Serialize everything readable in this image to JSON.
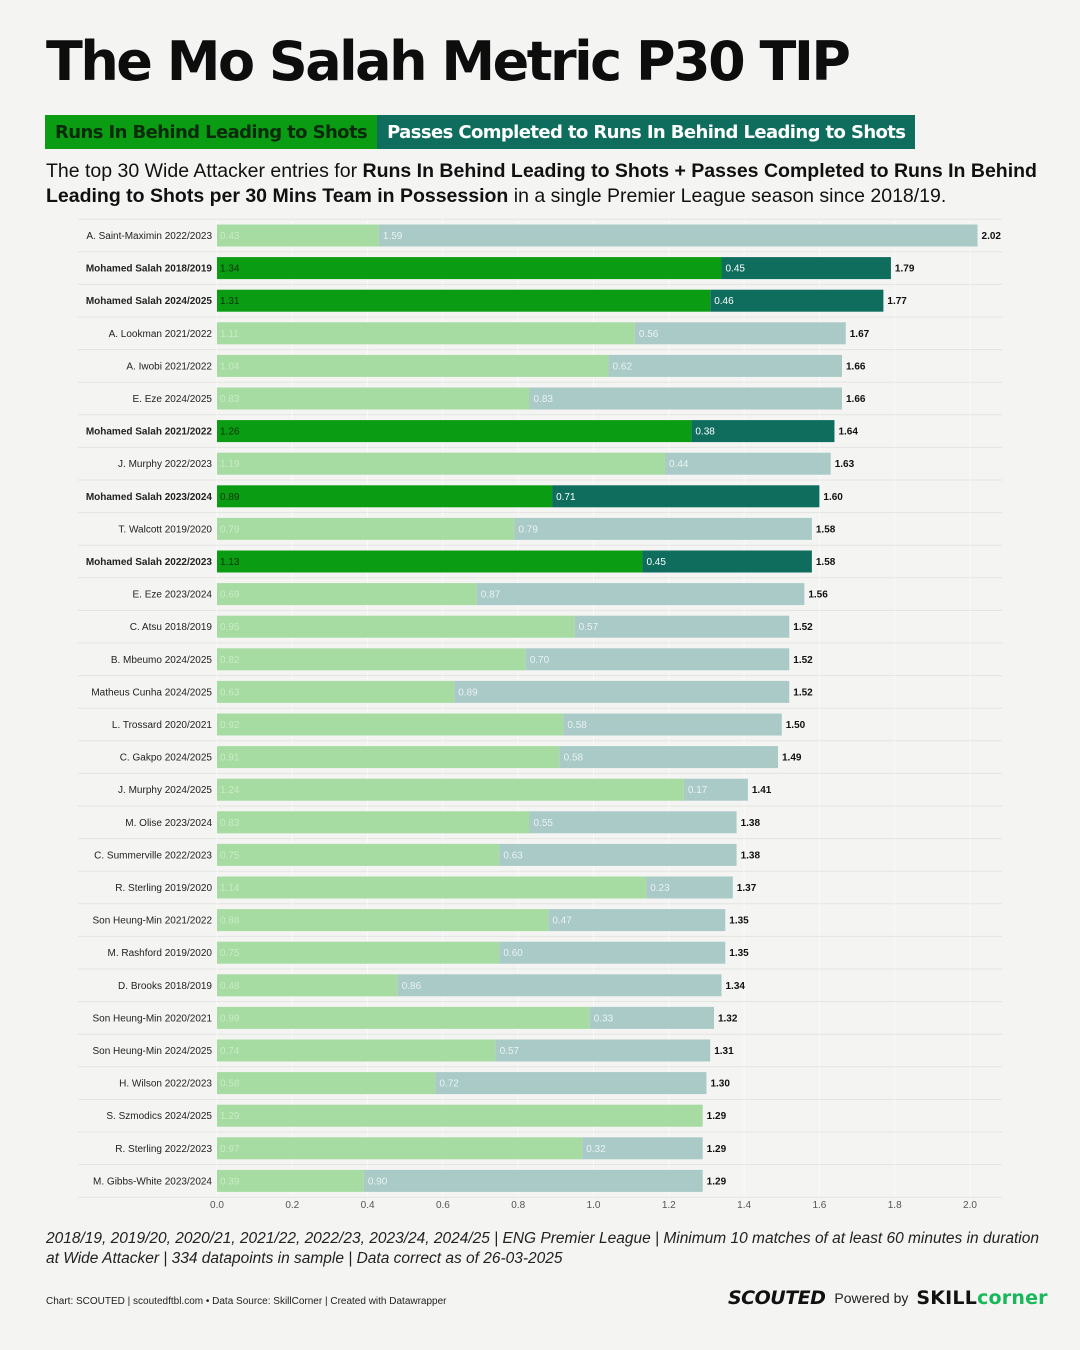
{
  "header": {
    "title": "The Mo Salah Metric P30 TIP",
    "legend_runs": "Runs In Behind Leading to Shots",
    "legend_passes": "Passes Completed to Runs In Behind Leading to Shots",
    "subtitle_part1": "The top 30 Wide Attacker entries for ",
    "subtitle_bold": "Runs In Behind Leading to Shots + Passes Completed to Runs In Behind Leading to Shots per 30 Mins Team in Possession",
    "subtitle_part2": " in a single Premier League season since 2018/19."
  },
  "colors": {
    "runs_highlight": "#0a9c12",
    "passes_highlight": "#0f6d5d",
    "runs_default": "#a6dba2",
    "passes_default": "#a9cac6"
  },
  "chart_data": {
    "type": "bar",
    "orientation": "horizontal",
    "stacked": true,
    "title": "The Mo Salah Metric P30 TIP",
    "series_names": [
      "Runs In Behind Leading to Shots",
      "Passes Completed to Runs In Behind Leading to Shots"
    ],
    "xlim": [
      0,
      2.0
    ],
    "xticks": [
      "0.0",
      "0.2",
      "0.4",
      "0.6",
      "0.8",
      "1.0",
      "1.2",
      "1.4",
      "1.6",
      "1.8",
      "2.0"
    ],
    "rows": [
      {
        "label": "A. Saint-Maximin 2022/2023",
        "runs": 0.43,
        "passes": 1.59,
        "total": 2.02,
        "highlight": false
      },
      {
        "label": "Mohamed Salah 2018/2019",
        "runs": 1.34,
        "passes": 0.45,
        "total": 1.79,
        "highlight": true
      },
      {
        "label": "Mohamed Salah 2024/2025",
        "runs": 1.31,
        "passes": 0.46,
        "total": 1.77,
        "highlight": true
      },
      {
        "label": "A. Lookman 2021/2022",
        "runs": 1.11,
        "passes": 0.56,
        "total": 1.67,
        "highlight": false
      },
      {
        "label": "A. Iwobi 2021/2022",
        "runs": 1.04,
        "passes": 0.62,
        "total": 1.66,
        "highlight": false
      },
      {
        "label": "E. Eze 2024/2025",
        "runs": 0.83,
        "passes": 0.83,
        "total": 1.66,
        "highlight": false
      },
      {
        "label": "Mohamed Salah 2021/2022",
        "runs": 1.26,
        "passes": 0.38,
        "total": 1.64,
        "highlight": true
      },
      {
        "label": "J. Murphy 2022/2023",
        "runs": 1.19,
        "passes": 0.44,
        "total": 1.63,
        "highlight": false
      },
      {
        "label": "Mohamed Salah 2023/2024",
        "runs": 0.89,
        "passes": 0.71,
        "total": 1.6,
        "highlight": true
      },
      {
        "label": "T. Walcott 2019/2020",
        "runs": 0.79,
        "passes": 0.79,
        "total": 1.58,
        "highlight": false
      },
      {
        "label": "Mohamed Salah 2022/2023",
        "runs": 1.13,
        "passes": 0.45,
        "total": 1.58,
        "highlight": true
      },
      {
        "label": "E. Eze 2023/2024",
        "runs": 0.69,
        "passes": 0.87,
        "total": 1.56,
        "highlight": false
      },
      {
        "label": "C. Atsu 2018/2019",
        "runs": 0.95,
        "passes": 0.57,
        "total": 1.52,
        "highlight": false
      },
      {
        "label": "B. Mbeumo 2024/2025",
        "runs": 0.82,
        "passes": 0.7,
        "total": 1.52,
        "highlight": false
      },
      {
        "label": "Matheus Cunha 2024/2025",
        "runs": 0.63,
        "passes": 0.89,
        "total": 1.52,
        "highlight": false
      },
      {
        "label": "L. Trossard 2020/2021",
        "runs": 0.92,
        "passes": 0.58,
        "total": 1.5,
        "highlight": false
      },
      {
        "label": "C. Gakpo 2024/2025",
        "runs": 0.91,
        "passes": 0.58,
        "total": 1.49,
        "highlight": false
      },
      {
        "label": "J. Murphy 2024/2025",
        "runs": 1.24,
        "passes": 0.17,
        "total": 1.41,
        "highlight": false
      },
      {
        "label": "M. Olise 2023/2024",
        "runs": 0.83,
        "passes": 0.55,
        "total": 1.38,
        "highlight": false
      },
      {
        "label": "C. Summerville 2022/2023",
        "runs": 0.75,
        "passes": 0.63,
        "total": 1.38,
        "highlight": false
      },
      {
        "label": "R. Sterling 2019/2020",
        "runs": 1.14,
        "passes": 0.23,
        "total": 1.37,
        "highlight": false
      },
      {
        "label": "Son Heung-Min 2021/2022",
        "runs": 0.88,
        "passes": 0.47,
        "total": 1.35,
        "highlight": false
      },
      {
        "label": "M. Rashford 2019/2020",
        "runs": 0.75,
        "passes": 0.6,
        "total": 1.35,
        "highlight": false
      },
      {
        "label": "D. Brooks 2018/2019",
        "runs": 0.48,
        "passes": 0.86,
        "total": 1.34,
        "highlight": false
      },
      {
        "label": "Son Heung-Min 2020/2021",
        "runs": 0.99,
        "passes": 0.33,
        "total": 1.32,
        "highlight": false
      },
      {
        "label": "Son Heung-Min 2024/2025",
        "runs": 0.74,
        "passes": 0.57,
        "total": 1.31,
        "highlight": false
      },
      {
        "label": "H. Wilson 2022/2023",
        "runs": 0.58,
        "passes": 0.72,
        "total": 1.3,
        "highlight": false
      },
      {
        "label": "S. Szmodics 2024/2025",
        "runs": 1.29,
        "passes": null,
        "total": 1.29,
        "highlight": false
      },
      {
        "label": "R. Sterling 2022/2023",
        "runs": 0.97,
        "passes": 0.32,
        "total": 1.29,
        "highlight": false
      },
      {
        "label": "M. Gibbs-White 2023/2024",
        "runs": 0.39,
        "passes": 0.9,
        "total": 1.29,
        "highlight": false
      }
    ]
  },
  "footer": {
    "note": "2018/19, 2019/20, 2020/21, 2021/22, 2022/23, 2023/24, 2024/25 | ENG Premier League | Minimum 10 matches of at least 60 minutes in duration at Wide Attacker | 334 datapoints in sample | Data correct as of 26-03-2025",
    "credit": "Chart: SCOUTED | scoutedftbl.com • Data Source: SkillCorner | Created with Datawrapper",
    "brand_scouted": "SCOUTED",
    "powered_by": "Powered by",
    "brand_skill": "SKILL",
    "brand_corner": "corner"
  }
}
